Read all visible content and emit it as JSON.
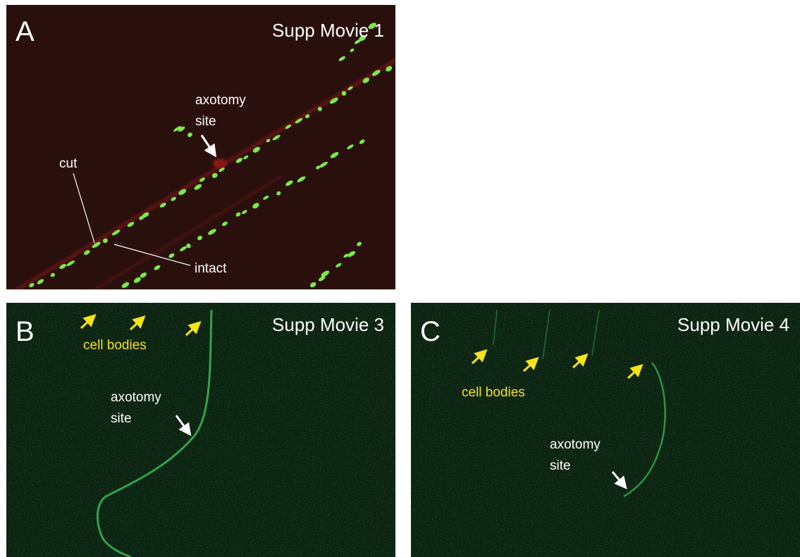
{
  "panels": [
    {
      "label": "A",
      "title": "Supp Movie 1",
      "annotations": {
        "axotomy_site": [
          "axotomy",
          "site"
        ],
        "cut": "cut",
        "intact": "intact"
      }
    },
    {
      "label": "B",
      "title": "Supp Movie 3",
      "annotations": {
        "cell_bodies": "cell bodies",
        "axotomy_site": [
          "axotomy",
          "site"
        ]
      }
    },
    {
      "label": "C",
      "title": "Supp Movie 4",
      "annotations": {
        "cell_bodies": "cell bodies",
        "axotomy_site": [
          "axotomy",
          "site"
        ]
      }
    }
  ]
}
